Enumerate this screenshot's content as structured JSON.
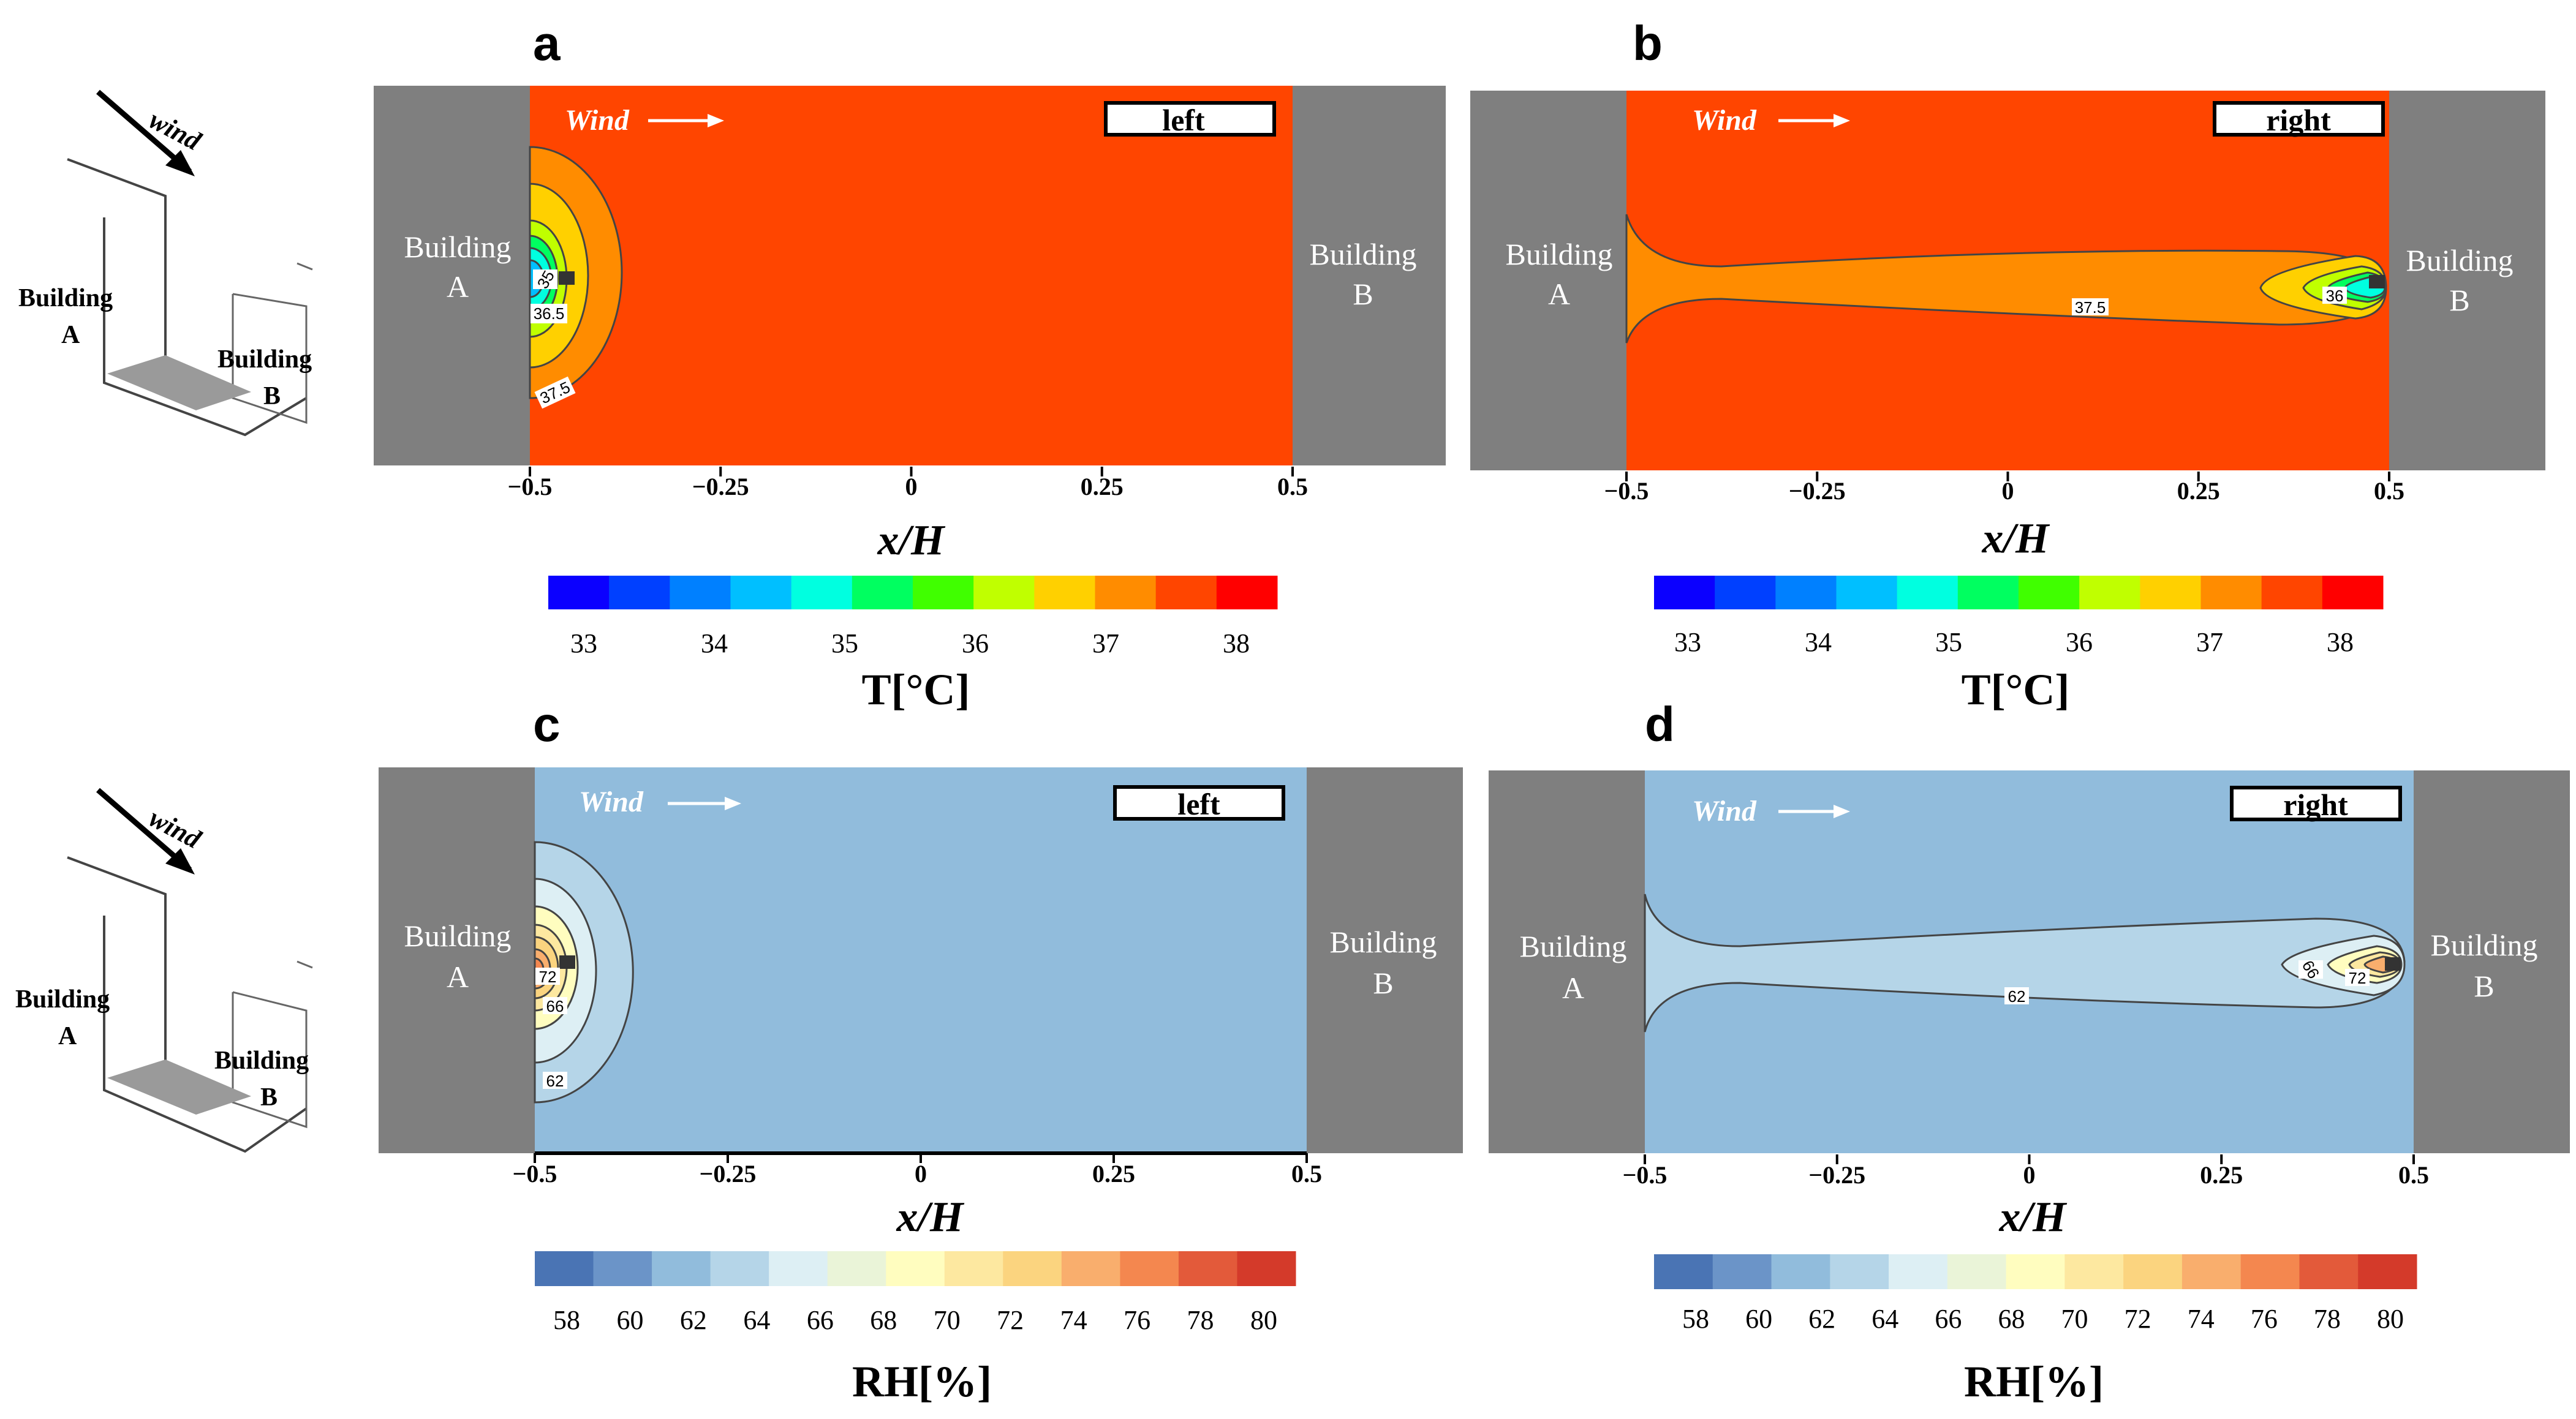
{
  "common": {
    "building_a": [
      "Building",
      "A"
    ],
    "building_b": [
      "Building",
      "B"
    ],
    "wind_label": "Wind",
    "xlabel": "x/H",
    "x_ticks": [
      "−0.5",
      "−0.25",
      "0",
      "0.25",
      "0.5"
    ]
  },
  "schematics": [
    {
      "wind": "wind",
      "building_a": [
        "Building",
        "A"
      ],
      "building_b": [
        "Building",
        "B"
      ]
    },
    {
      "wind": "wind",
      "building_a": [
        "Building",
        "A"
      ],
      "building_b": [
        "Building",
        "B"
      ]
    }
  ],
  "colorbars": {
    "temperature": {
      "label": "T[°C]",
      "ticks": [
        "33",
        "34",
        "35",
        "36",
        "37",
        "38"
      ],
      "colors": [
        "#0b00ff",
        "#0040ff",
        "#0080ff",
        "#00bfff",
        "#00ffe0",
        "#00ff60",
        "#40ff00",
        "#c0ff00",
        "#ffd000",
        "#ff8c00",
        "#ff4500",
        "#ff0000"
      ]
    },
    "humidity": {
      "label": "RH[%]",
      "ticks": [
        "58",
        "60",
        "62",
        "64",
        "66",
        "68",
        "70",
        "72",
        "74",
        "76",
        "78",
        "80"
      ],
      "colors": [
        "#4a74b4",
        "#6b94c8",
        "#91bcdc",
        "#b5d5e8",
        "#ddeff4",
        "#eaf4d8",
        "#fffdbf",
        "#fde8a0",
        "#fbd47f",
        "#f9ae6d",
        "#f4874f",
        "#e35a3a",
        "#d43a2a"
      ]
    }
  },
  "chart_data": [
    {
      "panel": "a",
      "type": "heatmap",
      "variable": "temperature",
      "case": "left",
      "background_color": "#ff4500",
      "contour_labels": [
        "35",
        "36.5",
        "37.5"
      ],
      "xlim": [
        -0.5,
        0.5
      ],
      "xlabel": "x/H",
      "colorbar": "temperature"
    },
    {
      "panel": "b",
      "type": "heatmap",
      "variable": "temperature",
      "case": "right",
      "background_color": "#ff4500",
      "contour_labels": [
        "36",
        "37.5"
      ],
      "xlim": [
        -0.5,
        0.5
      ],
      "xlabel": "x/H",
      "colorbar": "temperature"
    },
    {
      "panel": "c",
      "type": "heatmap",
      "variable": "humidity",
      "case": "left",
      "background_color": "#91bcdc",
      "contour_labels": [
        "72",
        "66",
        "62"
      ],
      "xlim": [
        -0.5,
        0.5
      ],
      "xlabel": "x/H",
      "colorbar": "humidity"
    },
    {
      "panel": "d",
      "type": "heatmap",
      "variable": "humidity",
      "case": "right",
      "background_color": "#91bcdc",
      "contour_labels": [
        "66",
        "72",
        "62"
      ],
      "xlim": [
        -0.5,
        0.5
      ],
      "xlabel": "x/H",
      "colorbar": "humidity"
    }
  ]
}
